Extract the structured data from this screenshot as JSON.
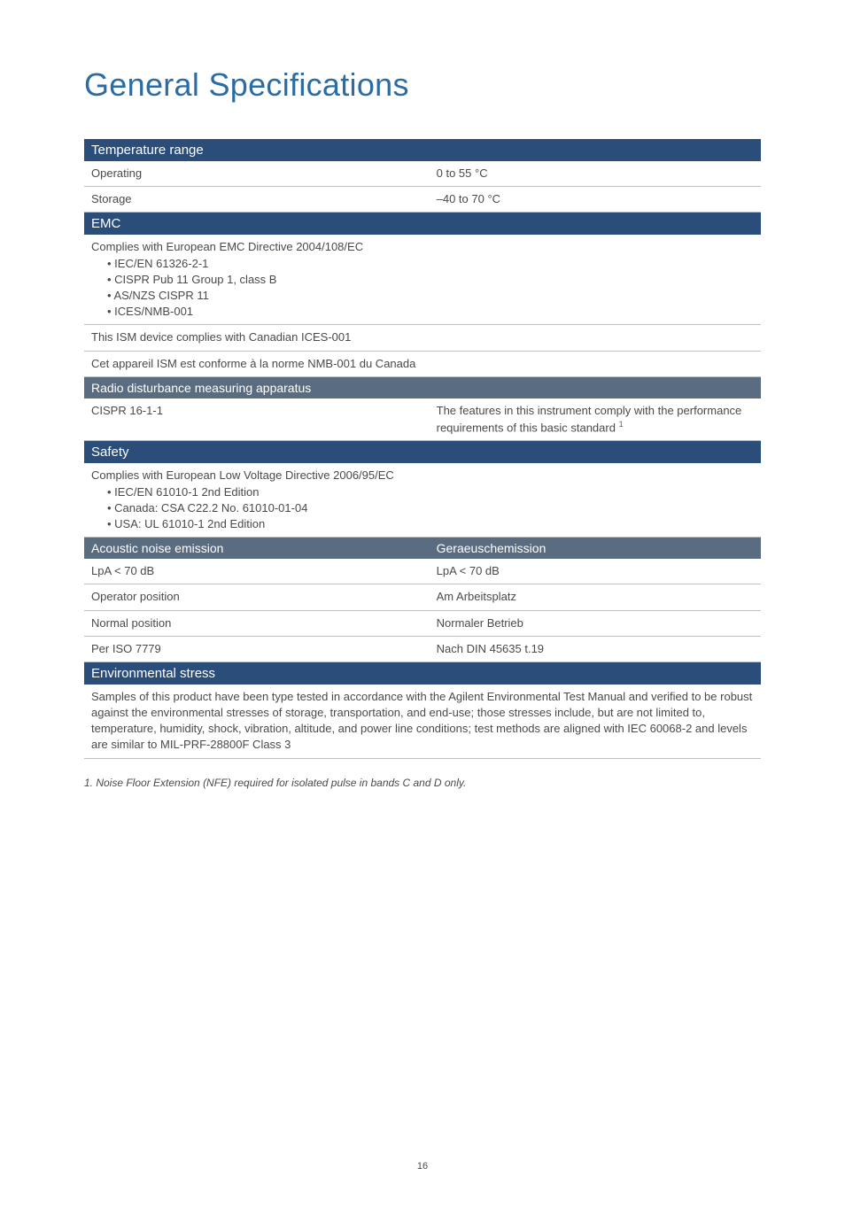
{
  "page": {
    "title": "General Specifications",
    "page_number": "16",
    "footnote": "1.  Noise Floor Extension (NFE) required for isolated pulse in bands C and D only."
  },
  "colors": {
    "title_color": "#2b6ca3",
    "section_header_bg": "#2b4d7a",
    "subsection_header_bg": "#5a6c80",
    "header_text": "#ffffff",
    "body_text": "#4a4a4a",
    "border": "#bfbfbf",
    "background": "#ffffff",
    "superscript": "#2b6ca3"
  },
  "typography": {
    "title_fontsize": 36,
    "section_fontsize": 15,
    "subsection_fontsize": 14,
    "body_fontsize": 13,
    "footnote_fontsize": 12,
    "pagenum_fontsize": 11
  },
  "sections": {
    "temperature": {
      "header": "Temperature range",
      "rows": [
        {
          "left": "Operating",
          "right": "0 to 55 °C"
        },
        {
          "left": "Storage",
          "right": "–40 to 70 °C"
        }
      ]
    },
    "emc": {
      "header": "EMC",
      "compliance_intro": "Complies with European EMC Directive 2004/108/EC",
      "bullets": [
        "• IEC/EN 61326-2-1",
        "• CISPR Pub 11 Group 1, class B",
        "• AS/NZS CISPR 11",
        "• ICES/NMB-001"
      ],
      "ism_en": "This ISM device complies with Canadian ICES-001",
      "ism_fr": "Cet appareil ISM est conforme à la norme NMB-001 du Canada"
    },
    "radio": {
      "header": "Radio disturbance measuring apparatus",
      "row_left": "CISPR 16-1-1",
      "row_right": "The features in this instrument comply with the performance requirements of this basic standard ",
      "sup": "1"
    },
    "safety": {
      "header": "Safety",
      "compliance_intro": "Complies with European Low Voltage Directive 2006/95/EC",
      "bullets": [
        "• IEC/EN 61010-1 2nd Edition",
        "• Canada: CSA C22.2 No. 61010-01-04",
        "• USA: UL 61010-1 2nd Edition"
      ]
    },
    "acoustic": {
      "header_left": "Acoustic noise emission",
      "header_right": "Geraeuschemission",
      "rows": [
        {
          "left": "LpA < 70 dB",
          "right": "LpA < 70 dB"
        },
        {
          "left": "Operator position",
          "right": "Am Arbeitsplatz"
        },
        {
          "left": "Normal position",
          "right": "Normaler Betrieb"
        },
        {
          "left": "Per ISO 7779",
          "right": "Nach DIN 45635 t.19"
        }
      ]
    },
    "environmental": {
      "header": "Environmental stress",
      "body": "Samples of this product have been type tested in accordance with the Agilent Environmental Test Manual and verified to be robust against the environmental stresses of storage, transportation, and end-use; those stresses include, but are not limited to, temperature, humidity, shock, vibration, altitude, and power line conditions; test methods are aligned with IEC 60068-2 and levels are similar to MIL-PRF-28800F Class 3"
    }
  }
}
